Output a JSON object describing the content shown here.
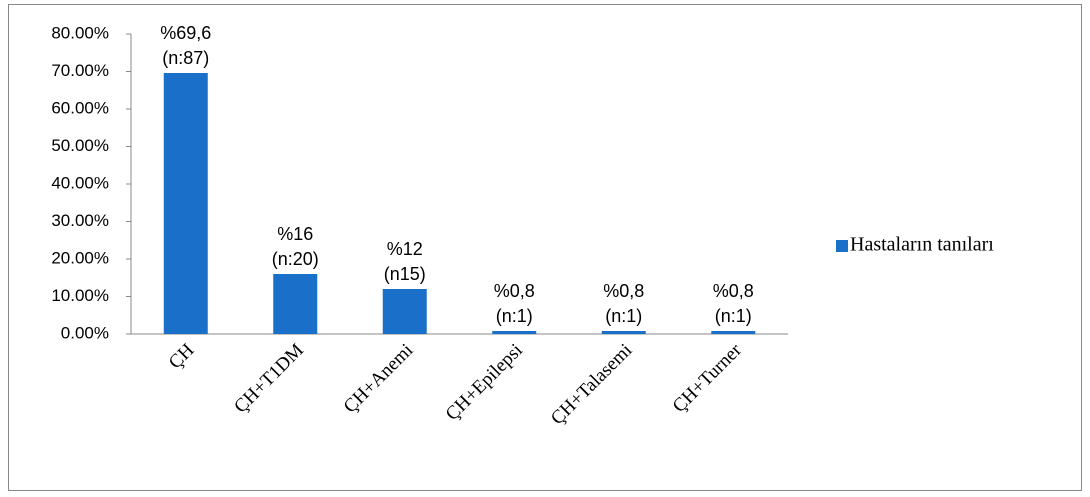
{
  "chart_data": {
    "type": "bar",
    "categories": [
      "ÇH",
      "ÇH+T1DM",
      "ÇH+Anemi",
      "ÇH+Epilepsi",
      "ÇH+Talasemi",
      "ÇH+Turner"
    ],
    "series": [
      {
        "name": "Hastaların tanıları",
        "color": "#1a6fc9",
        "values": [
          69.6,
          16,
          12,
          0.8,
          0.8,
          0.8
        ]
      }
    ],
    "value_labels": [
      [
        "%69,6",
        "(n:87)"
      ],
      [
        "%16",
        "(n:20)"
      ],
      [
        "%12",
        "(n15)"
      ],
      [
        "%0,8",
        "(n:1)"
      ],
      [
        "%0,8",
        "(n:1)"
      ],
      [
        "%0,8",
        "(n:1)"
      ]
    ],
    "ylim": [
      0,
      80
    ],
    "yticks": [
      {
        "value": 0,
        "label": "0.00%"
      },
      {
        "value": 10,
        "label": "10.00%"
      },
      {
        "value": 20,
        "label": "20.00%"
      },
      {
        "value": 30,
        "label": "30.00%"
      },
      {
        "value": 40,
        "label": "40.00%"
      },
      {
        "value": 50,
        "label": "50.00%"
      },
      {
        "value": 60,
        "label": "60.00%"
      },
      {
        "value": 70,
        "label": "70.00%"
      },
      {
        "value": 80,
        "label": "80.00%"
      }
    ],
    "grid": false,
    "legend": "right"
  }
}
